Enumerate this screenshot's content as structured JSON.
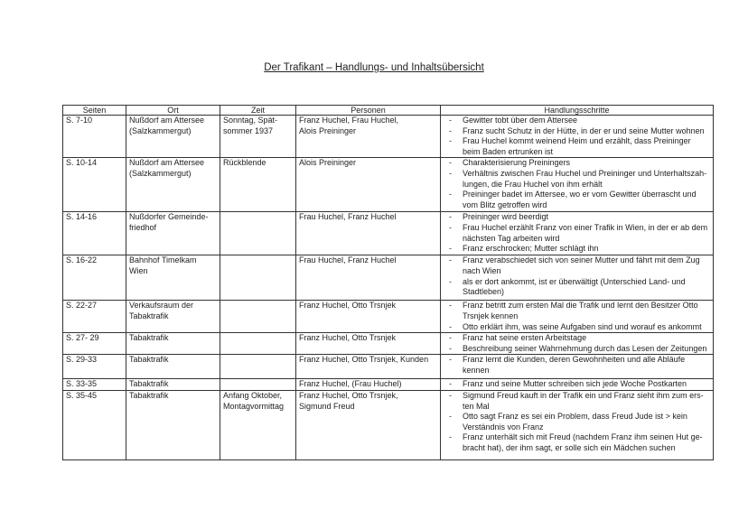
{
  "title": "Der Trafikant – Handlungs- und Inhaltsübersicht",
  "columns": [
    "Seiten",
    "Ort",
    "Zeit",
    "Personen",
    "Handlungsschritte"
  ],
  "rows": [
    {
      "seiten": "S. 7-10",
      "ort": [
        "Nußdorf am Attersee",
        "(Salzkammergut)"
      ],
      "zeit": [
        "Sonntag, Spät-",
        "sommer 1937"
      ],
      "personen": [
        "Franz Huchel, Frau Huchel,",
        "Alois Preininger"
      ],
      "schritte": [
        "Gewitter tobt über dem Attersee",
        "Franz sucht Schutz in der Hütte, in der er und seine Mutter wohnen",
        "Frau Huchel kommt weinend Heim und erzählt, dass Preininger beim Baden ertrunken ist"
      ]
    },
    {
      "seiten": "S. 10-14",
      "ort": [
        "Nußdorf am Attersee",
        "(Salzkammergut)"
      ],
      "zeit": [
        "Rückblende"
      ],
      "personen": [
        "Alois Preininger"
      ],
      "schritte": [
        "Charakterisierung Preiningers",
        "Verhältnis zwischen Frau Huchel und Preininger und Unterhaltszah-lungen, die Frau Huchel von ihm erhält",
        "Preininger badet im Attersee, wo er vom Gewitter überrascht und vom Blitz getroffen wird"
      ]
    },
    {
      "seiten": "S. 14-16",
      "ort": [
        "Nußdorfer Gemeinde-",
        "friedhof"
      ],
      "zeit": [],
      "personen": [
        "Frau Huchel, Franz Huchel"
      ],
      "schritte": [
        "Preininger wird beerdigt",
        "Frau Huchel erzählt Franz von einer Trafik in Wien, in der er ab dem nächsten Tag arbeiten wird",
        "Franz erschrocken; Mutter schlägt ihn"
      ]
    },
    {
      "seiten": "S. 16-22",
      "ort": [
        "Bahnhof Timelkam",
        "Wien"
      ],
      "zeit": [],
      "personen": [
        "Frau Huchel, Franz Huchel"
      ],
      "schritte": [
        "Franz verabschiedet sich von seiner Mutter und fährt mit dem Zug nach Wien",
        "als er dort ankommt, ist er überwältigt (Unterschied Land- und Stadtleben)"
      ]
    },
    {
      "seiten": "S. 22-27",
      "ort": [
        "Verkaufsraum der",
        "Tabaktrafik"
      ],
      "zeit": [],
      "personen": [
        "Franz Huchel, Otto Trsnjek"
      ],
      "schritte": [
        "Franz betritt zum ersten Mal die Trafik und lernt den Besitzer Otto Trsnjek kennen",
        "Otto erklärt ihm, was seine Aufgaben sind und worauf es ankommt"
      ]
    },
    {
      "seiten": "S. 27- 29",
      "ort": [
        "Tabaktrafik"
      ],
      "zeit": [],
      "personen": [
        "Franz Huchel, Otto Trsnjek"
      ],
      "schritte": [
        "Franz hat seine ersten Arbeitstage",
        "Beschreibung seiner Wahrnehmung durch das Lesen der Zeitungen"
      ]
    },
    {
      "seiten": "S. 29-33",
      "ort": [
        "Tabaktrafik"
      ],
      "zeit": [],
      "personen": [
        "Franz Huchel, Otto Trsnjek, Kunden"
      ],
      "schritte": [
        "Franz lernt die Kunden, deren Gewohnheiten und alle Abläufe kennen"
      ]
    },
    {
      "seiten": "S. 33-35",
      "ort": [
        "Tabaktrafik"
      ],
      "zeit": [],
      "personen": [
        "Franz Huchel, (Frau Huchel)"
      ],
      "schritte": [
        "Franz und seine Mutter schreiben sich jede Woche Postkarten"
      ]
    },
    {
      "seiten": "S. 35-45",
      "ort": [
        "Tabaktrafik"
      ],
      "zeit": [
        "Anfang Oktober,",
        "Montagvormittag"
      ],
      "personen": [
        "Franz Huchel, Otto Trsnjek,",
        "Sigmund Freud"
      ],
      "schritte": [
        "Sigmund Freud kauft in der Trafik ein und Franz sieht ihm zum ers-ten Mal",
        "Otto sagt Franz es sei ein Problem, dass Freud Jude ist > kein Verständnis von Franz",
        "Franz unterhält sich mit Freud (nachdem Franz ihm seinen Hut ge-bracht hat), der ihm sagt, er solle sich ein Mädchen suchen"
      ]
    }
  ]
}
